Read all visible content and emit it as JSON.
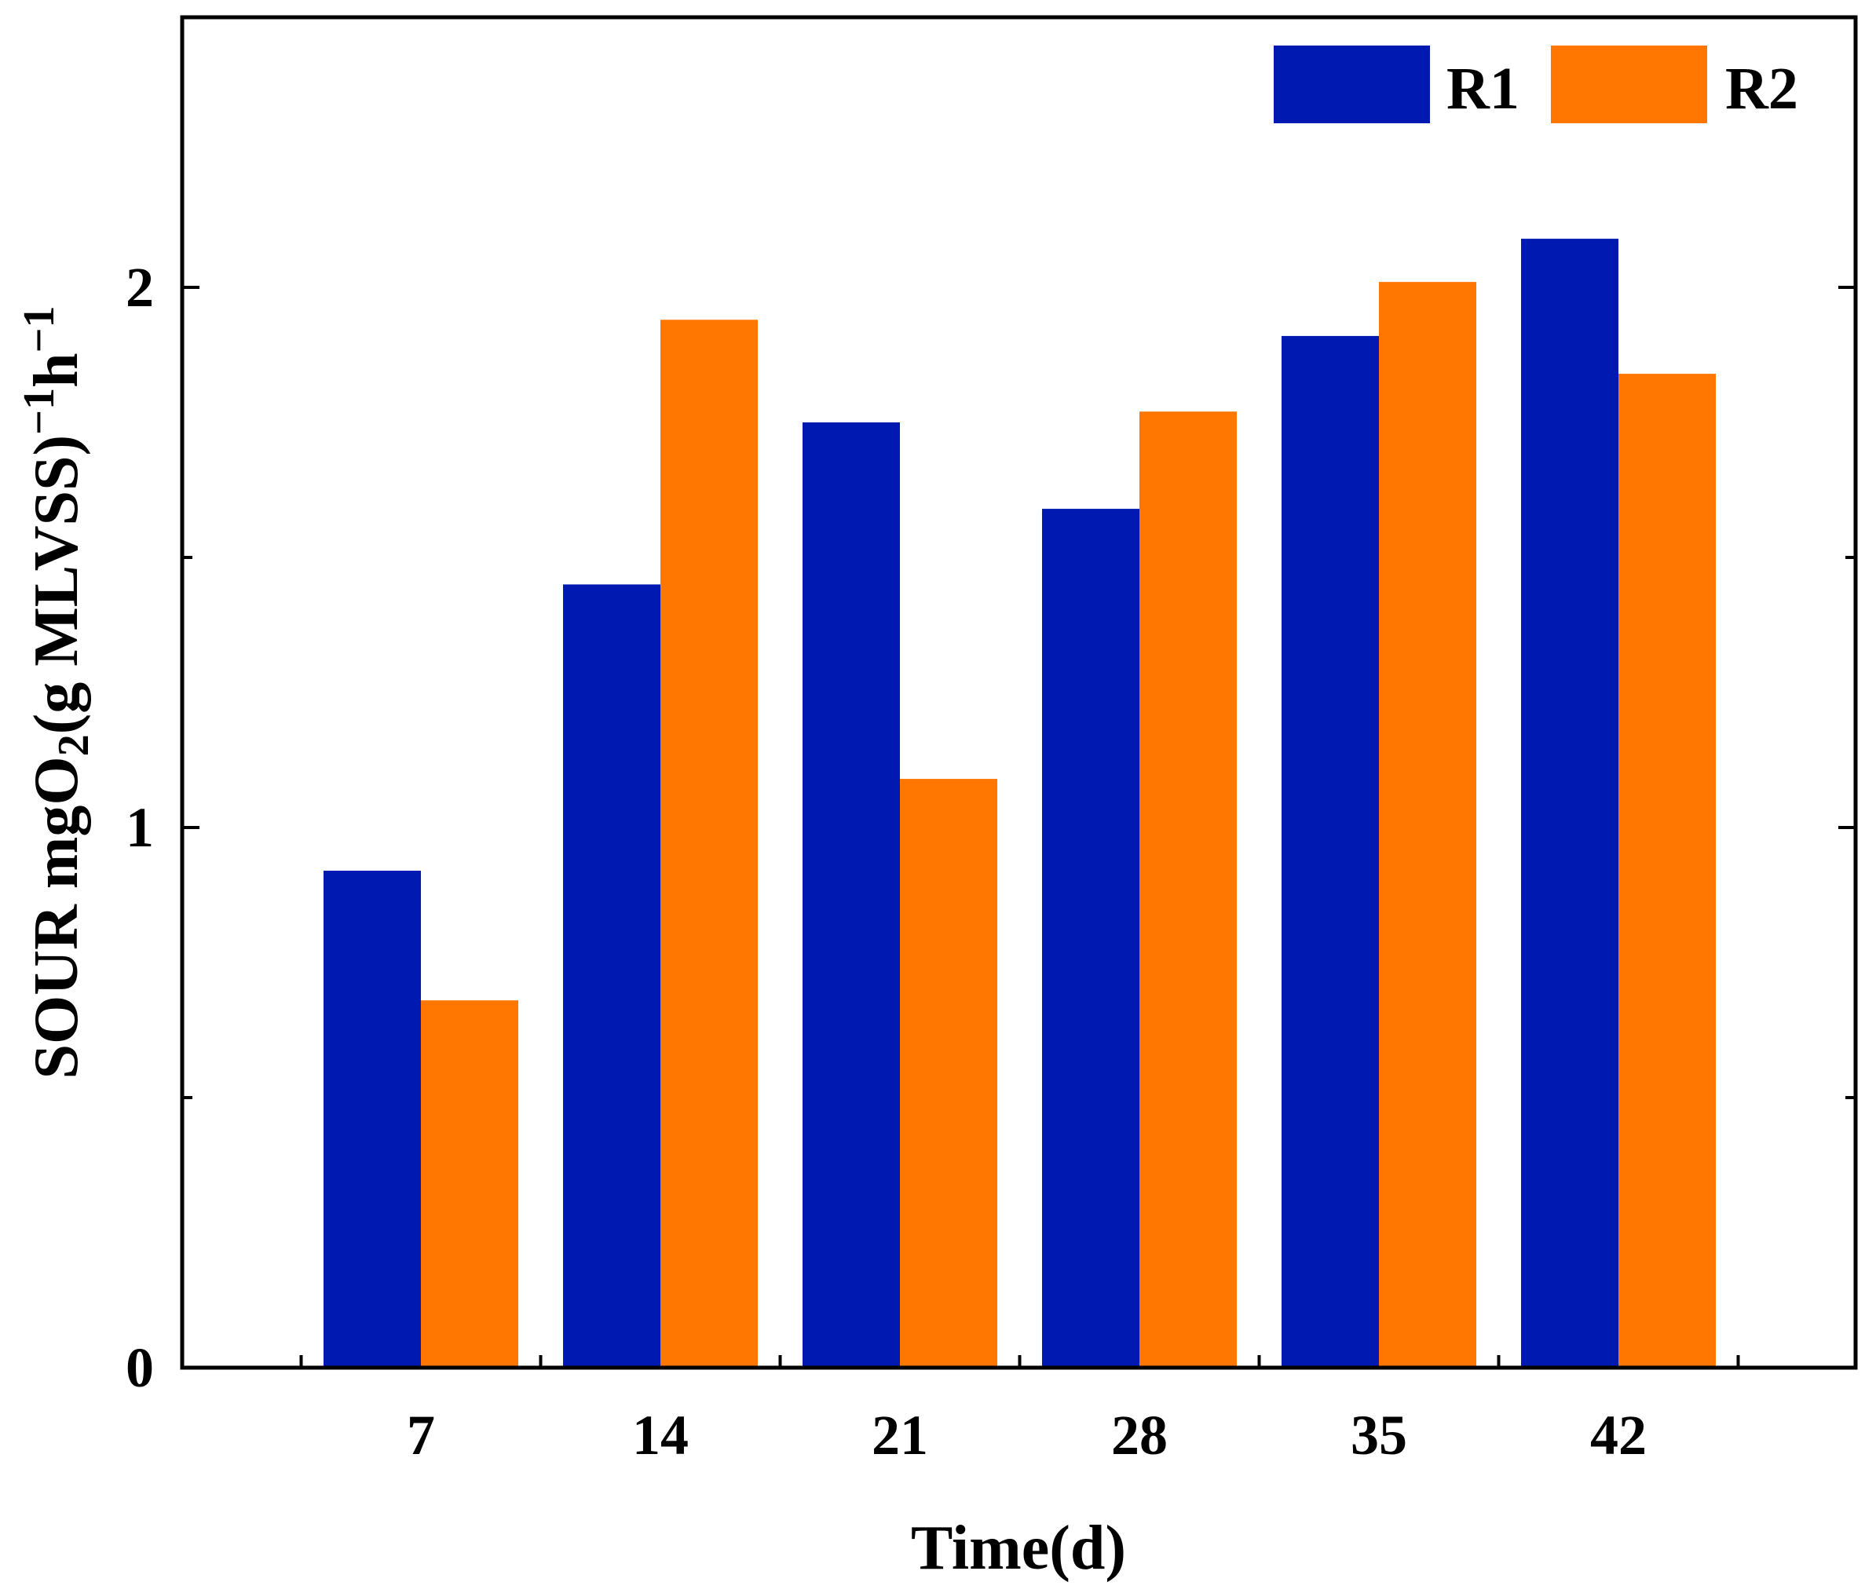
{
  "chart_data": {
    "type": "bar",
    "title": "",
    "xlabel": "Time(d)",
    "ylabel": {
      "prefix": "SOUR mgO",
      "sub": "2",
      "mid1": "(g MLVSS)",
      "sup1": "−1",
      "mid2": "h",
      "sup2": "−1"
    },
    "categories": [
      "7",
      "14",
      "21",
      "28",
      "35",
      "42"
    ],
    "series": [
      {
        "name": "R1",
        "color": "#0019b0",
        "values": [
          0.92,
          1.45,
          1.75,
          1.59,
          1.91,
          2.09
        ]
      },
      {
        "name": "R2",
        "color": "#ff7600",
        "values": [
          0.68,
          1.94,
          1.09,
          1.77,
          2.01,
          1.84
        ]
      }
    ],
    "ylim": [
      0,
      2.5
    ],
    "yticks": [
      0,
      1,
      2
    ],
    "ytick_labels": [
      "0",
      "1",
      "2"
    ],
    "grid": false,
    "legend_position": "top-right"
  }
}
